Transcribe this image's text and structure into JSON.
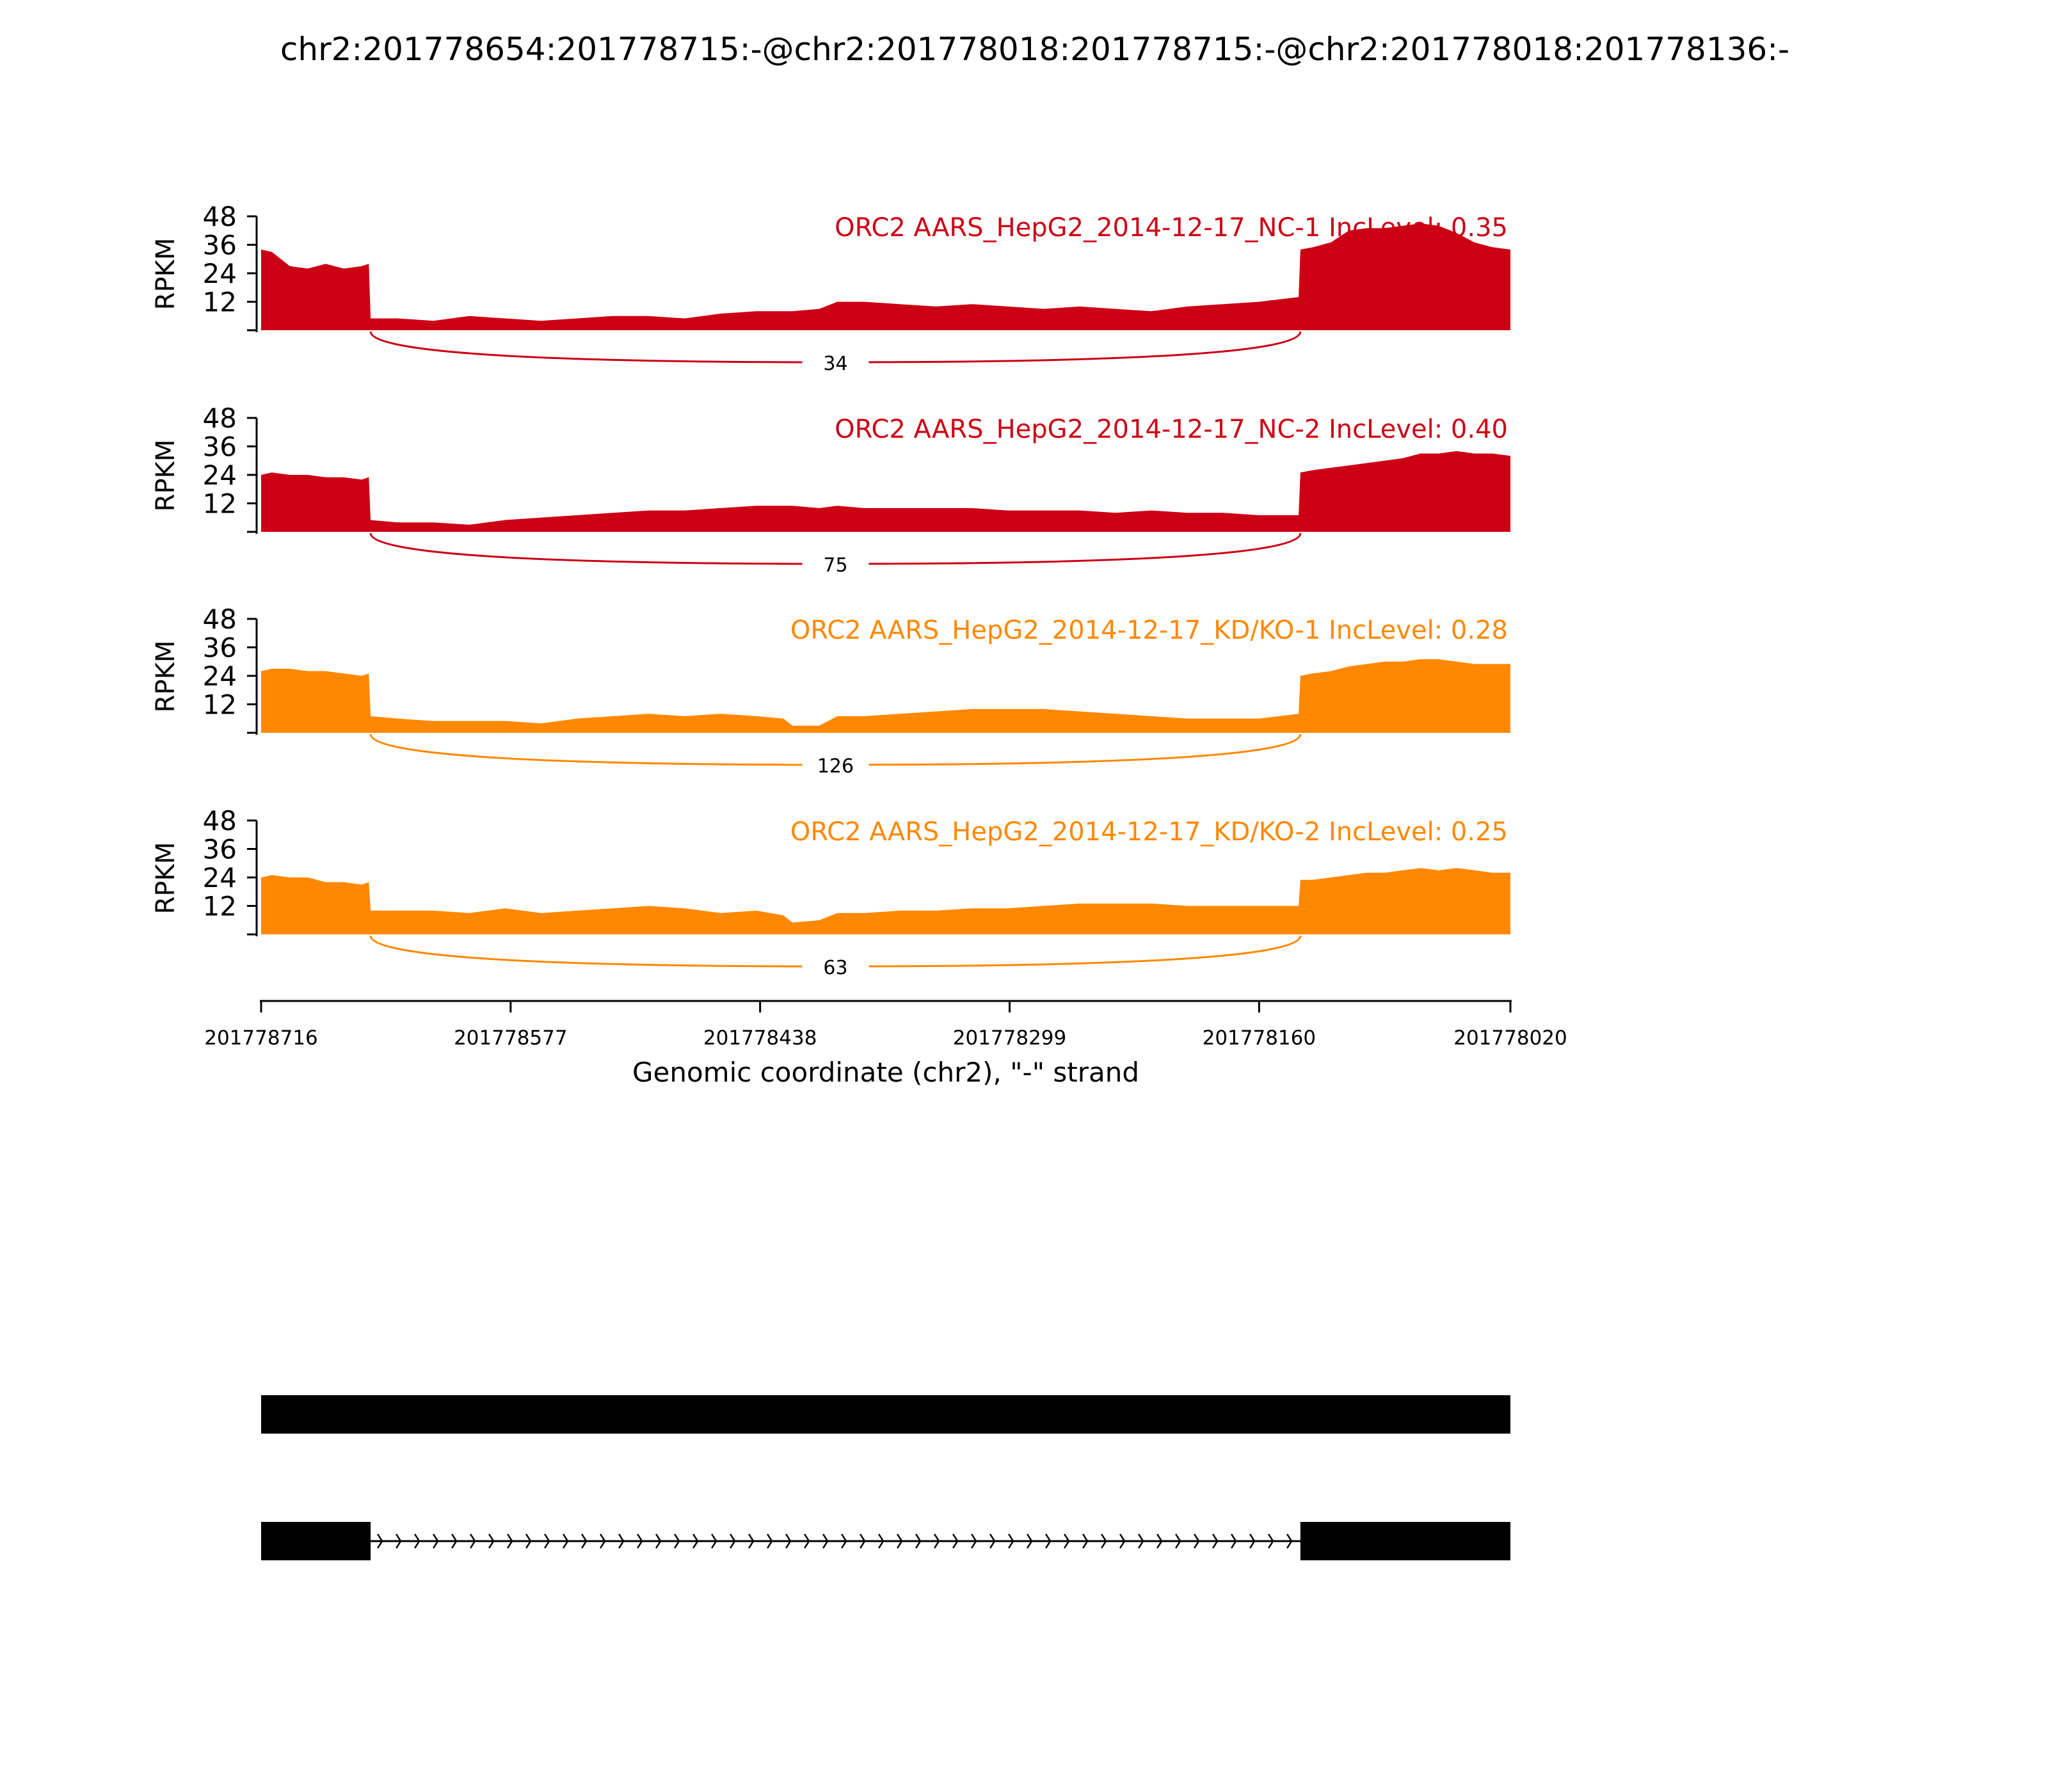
{
  "chart_data": {
    "type": "area",
    "title": "chr2:201778654:201778715:-@chr2:201778018:201778715:-@chr2:201778018:201778136:-",
    "xlabel": "Genomic coordinate (chr2), \"-\" strand",
    "ylabel": "RPKM",
    "x_range": [
      201778716,
      201778020
    ],
    "x_ticks": [
      "201778716",
      "201778577",
      "201778438",
      "201778299",
      "201778160",
      "201778020"
    ],
    "y_range": [
      0,
      48
    ],
    "y_ticks": [
      "12",
      "24",
      "36",
      "48"
    ],
    "exon_boundaries": [
      201778655,
      201778137
    ],
    "series": [
      {
        "name": "ORC2 AARS_HepG2_2014-12-17_NC-1",
        "label": "ORC2 AARS_HepG2_2014-12-17_NC-1 IncLevel: 0.35",
        "color": "#cc0014",
        "junction_count": "34",
        "x": [
          201778716,
          201778710,
          201778700,
          201778690,
          201778680,
          201778670,
          201778660,
          201778656,
          201778655,
          201778640,
          201778620,
          201778600,
          201778580,
          201778560,
          201778540,
          201778520,
          201778500,
          201778480,
          201778460,
          201778440,
          201778420,
          201778405,
          201778395,
          201778380,
          201778360,
          201778340,
          201778320,
          201778300,
          201778280,
          201778260,
          201778240,
          201778220,
          201778200,
          201778180,
          201778160,
          201778138,
          201778137,
          201778130,
          201778120,
          201778110,
          201778100,
          201778090,
          201778080,
          201778070,
          201778060,
          201778050,
          201778040,
          201778030,
          201778020
        ],
        "y": [
          34,
          33,
          27,
          26,
          28,
          26,
          27,
          28,
          5,
          5,
          4,
          6,
          5,
          4,
          5,
          6,
          6,
          5,
          7,
          8,
          8,
          9,
          12,
          12,
          11,
          10,
          11,
          10,
          9,
          10,
          9,
          8,
          10,
          11,
          12,
          14,
          34,
          35,
          37,
          42,
          43,
          43,
          44,
          45,
          44,
          41,
          37,
          35,
          34
        ]
      },
      {
        "name": "ORC2 AARS_HepG2_2014-12-17_NC-2",
        "label": "ORC2 AARS_HepG2_2014-12-17_NC-2 IncLevel: 0.40",
        "color": "#cc0014",
        "junction_count": "75",
        "x": [
          201778716,
          201778710,
          201778700,
          201778690,
          201778680,
          201778670,
          201778660,
          201778656,
          201778655,
          201778640,
          201778620,
          201778600,
          201778580,
          201778560,
          201778540,
          201778520,
          201778500,
          201778480,
          201778460,
          201778440,
          201778420,
          201778405,
          201778395,
          201778380,
          201778360,
          201778340,
          201778320,
          201778300,
          201778280,
          201778260,
          201778240,
          201778220,
          201778200,
          201778180,
          201778160,
          201778138,
          201778137,
          201778130,
          201778120,
          201778110,
          201778100,
          201778090,
          201778080,
          201778070,
          201778060,
          201778050,
          201778040,
          201778030,
          201778020
        ],
        "y": [
          24,
          25,
          24,
          24,
          23,
          23,
          22,
          23,
          5,
          4,
          4,
          3,
          5,
          6,
          7,
          8,
          9,
          9,
          10,
          11,
          11,
          10,
          11,
          10,
          10,
          10,
          10,
          9,
          9,
          9,
          8,
          9,
          8,
          8,
          7,
          7,
          25,
          26,
          27,
          28,
          29,
          30,
          31,
          33,
          33,
          34,
          33,
          33,
          32
        ]
      },
      {
        "name": "ORC2 AARS_HepG2_2014-12-17_KD/KO-1",
        "label": "ORC2 AARS_HepG2_2014-12-17_KD/KO-1 IncLevel: 0.28",
        "color": "#ff8800",
        "junction_count": "126",
        "x": [
          201778716,
          201778710,
          201778700,
          201778690,
          201778680,
          201778670,
          201778660,
          201778656,
          201778655,
          201778640,
          201778620,
          201778600,
          201778580,
          201778560,
          201778540,
          201778520,
          201778500,
          201778480,
          201778460,
          201778440,
          201778425,
          201778420,
          201778405,
          201778395,
          201778380,
          201778360,
          201778340,
          201778320,
          201778300,
          201778280,
          201778260,
          201778240,
          201778220,
          201778200,
          201778180,
          201778160,
          201778138,
          201778137,
          201778130,
          201778120,
          201778110,
          201778100,
          201778090,
          201778080,
          201778070,
          201778060,
          201778050,
          201778040,
          201778030,
          201778020
        ],
        "y": [
          26,
          27,
          27,
          26,
          26,
          25,
          24,
          25,
          7,
          6,
          5,
          5,
          5,
          4,
          6,
          7,
          8,
          7,
          8,
          7,
          6,
          3,
          3,
          7,
          7,
          8,
          9,
          10,
          10,
          10,
          9,
          8,
          7,
          6,
          6,
          6,
          8,
          24,
          25,
          26,
          28,
          29,
          30,
          30,
          31,
          31,
          30,
          29,
          29,
          29
        ]
      },
      {
        "name": "ORC2 AARS_HepG2_2014-12-17_KD/KO-2",
        "label": "ORC2 AARS_HepG2_2014-12-17_KD/KO-2 IncLevel: 0.25",
        "color": "#ff8800",
        "junction_count": "63",
        "x": [
          201778716,
          201778710,
          201778700,
          201778690,
          201778680,
          201778670,
          201778660,
          201778656,
          201778655,
          201778640,
          201778620,
          201778600,
          201778580,
          201778560,
          201778540,
          201778520,
          201778500,
          201778480,
          201778460,
          201778440,
          201778425,
          201778420,
          201778405,
          201778395,
          201778380,
          201778360,
          201778340,
          201778320,
          201778300,
          201778280,
          201778260,
          201778240,
          201778220,
          201778200,
          201778180,
          201778160,
          201778138,
          201778137,
          201778130,
          201778120,
          201778110,
          201778100,
          201778090,
          201778080,
          201778070,
          201778060,
          201778050,
          201778040,
          201778030,
          201778020
        ],
        "y": [
          24,
          25,
          24,
          24,
          22,
          22,
          21,
          22,
          10,
          10,
          10,
          9,
          11,
          9,
          10,
          11,
          12,
          11,
          9,
          10,
          8,
          5,
          6,
          9,
          9,
          10,
          10,
          11,
          11,
          12,
          13,
          13,
          13,
          12,
          12,
          12,
          12,
          23,
          23,
          24,
          25,
          26,
          26,
          27,
          28,
          27,
          28,
          27,
          26,
          26
        ]
      }
    ],
    "gene_models": [
      {
        "exons": [
          [
            201778716,
            201778020
          ]
        ]
      },
      {
        "exons": [
          [
            201778716,
            201778655
          ],
          [
            201778137,
            201778020
          ]
        ]
      }
    ]
  }
}
